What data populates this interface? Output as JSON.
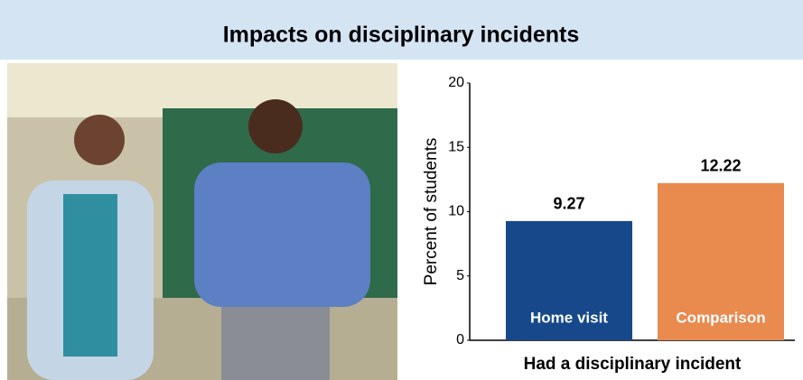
{
  "chart_data": {
    "type": "bar",
    "title": "Impacts on disciplinary incidents",
    "categories": [
      "Home visit",
      "Comparison"
    ],
    "values": [
      9.27,
      12.22
    ],
    "colors": [
      "#17498a",
      "#e98a4f"
    ],
    "ylabel": "Percent of students",
    "xlabel": "Had a disciplinary incident",
    "ylim": [
      0,
      20
    ],
    "yticks": [
      0,
      5,
      10,
      15,
      20
    ]
  }
}
